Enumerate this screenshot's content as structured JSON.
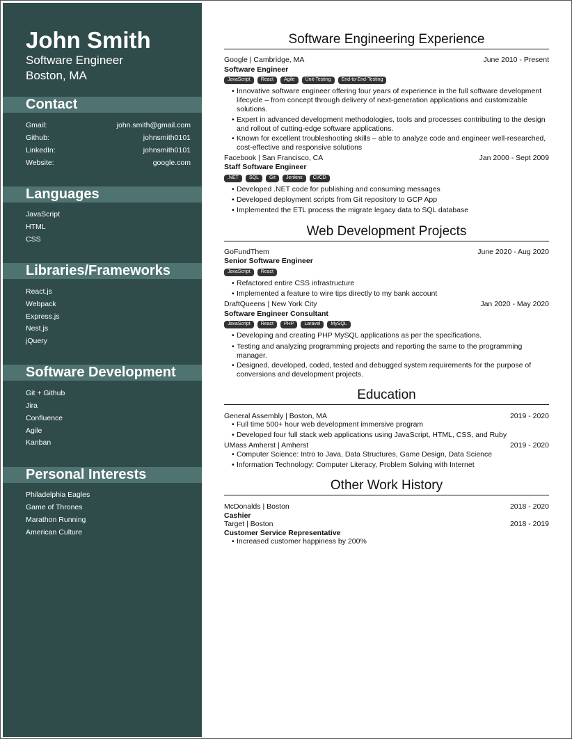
{
  "sidebar": {
    "name": "John Smith",
    "title": "Software Engineer",
    "location": "Boston, MA",
    "contact": {
      "heading": "Contact",
      "rows": [
        {
          "label": "Gmail:",
          "value": "john.smith@gmail.com"
        },
        {
          "label": "Github:",
          "value": "johnsmith0101"
        },
        {
          "label": "LinkedIn:",
          "value": "johnsmith0101"
        },
        {
          "label": "Website:",
          "value": "google.com"
        }
      ]
    },
    "languages": {
      "heading": "Languages",
      "items": [
        "JavaScript",
        "HTML",
        "CSS"
      ]
    },
    "libraries": {
      "heading": "Libraries/Frameworks",
      "items": [
        "React.js",
        "Webpack",
        "Express.js",
        "Nest.js",
        "jQuery"
      ]
    },
    "software": {
      "heading": "Software Development",
      "items": [
        "Git + Github",
        "Jira",
        "Confluence",
        "Agile",
        "Kanban"
      ]
    },
    "interests": {
      "heading": "Personal Interests",
      "items": [
        "Philadelphia Eagles",
        "Game of Thrones",
        "Marathon Running",
        "American Culture"
      ]
    }
  },
  "experience": {
    "heading": "Software Engineering Experience",
    "jobs": [
      {
        "company": "Google | Cambridge, MA",
        "dates": "June 2010 - Present",
        "role": "Software Engineer",
        "tags": [
          "JavaScript",
          "React",
          "Agile",
          "Unit-Testing",
          "End-to-End-Testing"
        ],
        "bullets": [
          "Innovative software engineer offering four years of experience in the full software development lifecycle – from concept through delivery of next-generation applications and customizable solutions.",
          "Expert in advanced development methodologies, tools and processes contributing to the design and rollout of cutting-edge software applications.",
          "Known for excellent troubleshooting skills – able to analyze code and engineer well-researched, cost-effective and responsive solutions"
        ]
      },
      {
        "company": "Facebook | San Francisco, CA",
        "dates": "Jan 2000 - Sept 2009",
        "role": "Staff Software Engineer",
        "tags": [
          ".NET",
          "SQL",
          "Git",
          "Jenkins",
          "CI/CD"
        ],
        "bullets": [
          "Developed .NET code for publishing and consuming messages",
          "Developed deployment scripts from Git repository to GCP App",
          "Implemented the ETL process the migrate legacy data to SQL database"
        ]
      }
    ]
  },
  "projects": {
    "heading": "Web Development Projects",
    "jobs": [
      {
        "company": "GoFundThem",
        "dates": "June 2020 - Aug 2020",
        "role": "Senior Software Engineer",
        "tags": [
          "JavaScript",
          "React"
        ],
        "bullets": [
          "Refactored entire CSS infrastructure",
          "Implemented a feature to wire tips directly to my bank account"
        ]
      },
      {
        "company": "DraftQueens | New York City",
        "dates": "Jan 2020 - May 2020",
        "role": "Software Engineer Consultant",
        "tags": [
          "JavaScript",
          "React",
          "PHP",
          "Laravel",
          "MySQL"
        ],
        "bullets": [
          "Developing and creating PHP MySQL applications as per the specifications.",
          "Testing and analyzing programming projects and reporting the same to the programming manager.",
          "Designed, developed, coded, tested and debugged system requirements for the purpose of conversions and development projects."
        ]
      }
    ]
  },
  "education": {
    "heading": "Education",
    "schools": [
      {
        "school": "General Assembly | Boston, MA",
        "dates": "2019 - 2020",
        "bullets": [
          "Full time 500+ hour web development immersive program",
          "Developed four full stack web applications using JavaScript, HTML, CSS, and Ruby"
        ]
      },
      {
        "school": "UMass Amherst | Amherst",
        "dates": "2019 - 2020",
        "bullets": [
          "Computer Science: Intro to Java, Data Structures, Game Design, Data Science",
          "Information Technology: Computer Literacy, Problem Solving with Internet"
        ]
      }
    ]
  },
  "other": {
    "heading": "Other Work History",
    "jobs": [
      {
        "company": "McDonalds | Boston",
        "dates": "2018 - 2020",
        "role": "Cashier"
      },
      {
        "company": "Target | Boston",
        "dates": "2018 - 2019",
        "role": "Customer Service Representative",
        "bullets": [
          "Increased customer happiness by 200%"
        ]
      }
    ]
  }
}
